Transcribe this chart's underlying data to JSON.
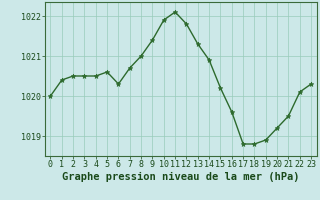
{
  "x": [
    0,
    1,
    2,
    3,
    4,
    5,
    6,
    7,
    8,
    9,
    10,
    11,
    12,
    13,
    14,
    15,
    16,
    17,
    18,
    19,
    20,
    21,
    22,
    23
  ],
  "y": [
    1020.0,
    1020.4,
    1020.5,
    1020.5,
    1020.5,
    1020.6,
    1020.3,
    1020.7,
    1021.0,
    1021.4,
    1021.9,
    1022.1,
    1021.8,
    1021.3,
    1020.9,
    1020.2,
    1019.6,
    1018.8,
    1018.8,
    1018.9,
    1019.2,
    1019.5,
    1020.1,
    1020.3
  ],
  "line_color": "#2d6a2d",
  "marker": "*",
  "marker_size": 3.5,
  "bg_color": "#cce8e8",
  "grid_color": "#99ccbb",
  "ylim": [
    1018.5,
    1022.35
  ],
  "yticks": [
    1019,
    1020,
    1021,
    1022
  ],
  "xlim": [
    -0.5,
    23.5
  ],
  "xlabel": "Graphe pression niveau de la mer (hPa)",
  "xlabel_fontsize": 7.5,
  "xlabel_color": "#1a4a1a",
  "tick_color": "#1a4a1a",
  "tick_fontsize": 6,
  "line_width": 1.0
}
